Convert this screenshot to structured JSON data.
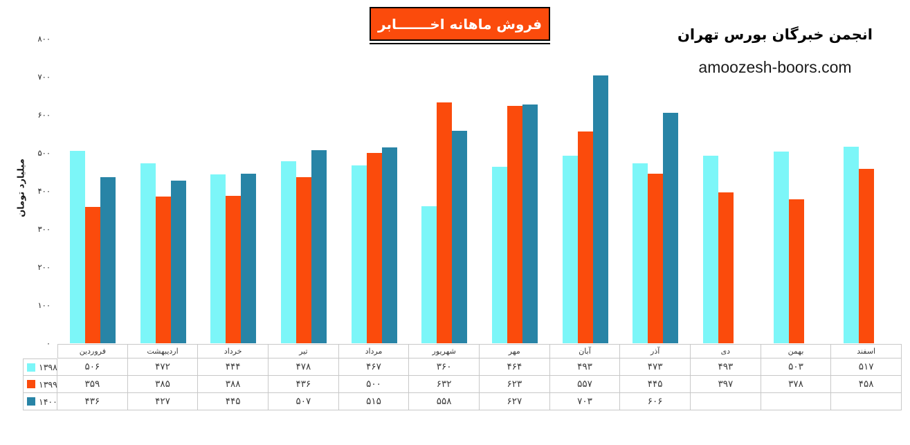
{
  "chart_title": "فروش ماهانه اخـــــــابر",
  "branding": {
    "org": "انجمن خبرگان بورس تهران",
    "site": "amoozesh-boors.com"
  },
  "chart_data": {
    "type": "bar",
    "title": "فروش ماهانه اخابر",
    "ylabel": "میلیارد تومان",
    "ylim": [
      0,
      800
    ],
    "ytick_step": 100,
    "grid": false,
    "legend_position": "table-left",
    "categories": [
      "فروردین",
      "اردیبهشت",
      "خرداد",
      "تیر",
      "مرداد",
      "شهریور",
      "مهر",
      "آبان",
      "آذر",
      "دی",
      "بهمن",
      "اسفند"
    ],
    "series": [
      {
        "name": "۱۳۹۸",
        "year": 1398,
        "color": "#7CF6F8",
        "values": [
          506,
          472,
          444,
          478,
          467,
          360,
          464,
          493,
          473,
          493,
          503,
          517
        ]
      },
      {
        "name": "۱۳۹۹",
        "year": 1399,
        "color": "#FB4B0C",
        "values": [
          359,
          385,
          388,
          436,
          500,
          632,
          623,
          557,
          445,
          397,
          378,
          458
        ]
      },
      {
        "name": "۱۴۰۰",
        "year": 1400,
        "color": "#2884A6",
        "values": [
          436,
          427,
          445,
          507,
          515,
          558,
          627,
          703,
          606,
          null,
          null,
          null
        ]
      }
    ]
  },
  "colors": {
    "title_box_bg": "#FB4B0C",
    "title_box_border": "#000000",
    "series_1398": "#7CF6F8",
    "series_1399": "#FB4B0C",
    "series_1400": "#2884A6",
    "table_border": "#C8C8C8",
    "background": "#FFFFFF"
  }
}
